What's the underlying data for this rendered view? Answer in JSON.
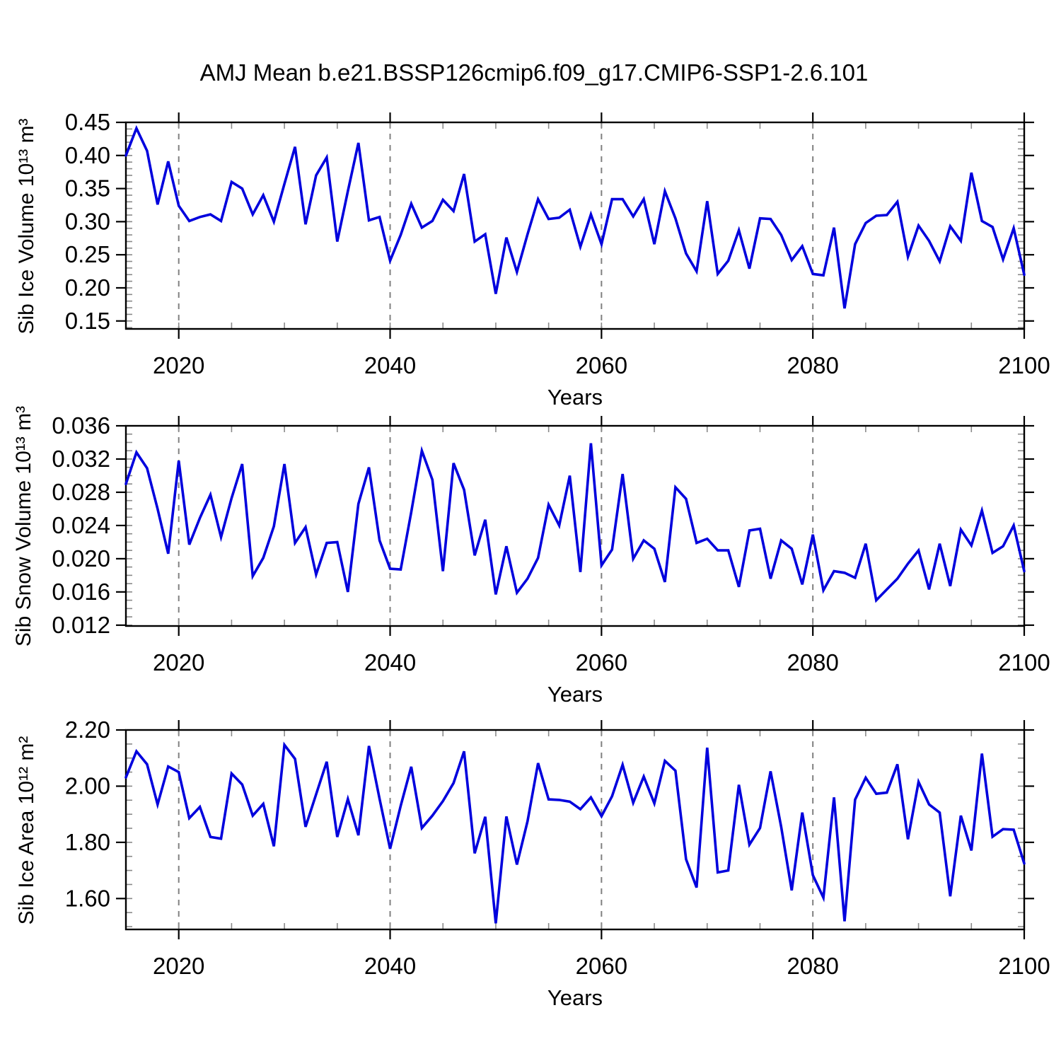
{
  "title": "AMJ Mean b.e21.BSSP126cmip6.f09_g17.CMIP6-SSP1-2.6.101",
  "years_label": "Years",
  "line_color": "#0000dd",
  "grid_color": "#808080",
  "axis_color": "#000000",
  "minor_tick_color": "#8a8a8a",
  "x_axis": {
    "min": 2015,
    "max": 2100,
    "major_ticks": [
      2020,
      2040,
      2060,
      2080,
      2100
    ],
    "major_tick_labels": [
      "2020",
      "2040",
      "2060",
      "2080",
      "2100"
    ],
    "minor_step": 5,
    "dashed_gridlines": [
      2020,
      2040,
      2060,
      2080
    ]
  },
  "chart_data": [
    {
      "type": "line",
      "name": "sib-ice-volume",
      "ylabel": "Sib Ice Volume 10¹³ m³",
      "xlabel": "Years",
      "ylim": [
        0.138,
        0.45
      ],
      "ytick_values": [
        0.15,
        0.2,
        0.25,
        0.3,
        0.35,
        0.4,
        0.45
      ],
      "ytick_labels": [
        "0.15",
        "0.20",
        "0.25",
        "0.30",
        "0.35",
        "0.40",
        "0.45"
      ],
      "yminor_step": 0.01,
      "x": [
        2015,
        2016,
        2017,
        2018,
        2019,
        2020,
        2021,
        2022,
        2023,
        2024,
        2025,
        2026,
        2027,
        2028,
        2029,
        2030,
        2031,
        2032,
        2033,
        2034,
        2035,
        2036,
        2037,
        2038,
        2039,
        2040,
        2041,
        2042,
        2043,
        2044,
        2045,
        2046,
        2047,
        2048,
        2049,
        2050,
        2051,
        2052,
        2053,
        2054,
        2055,
        2056,
        2057,
        2058,
        2059,
        2060,
        2061,
        2062,
        2063,
        2064,
        2065,
        2066,
        2067,
        2068,
        2069,
        2070,
        2071,
        2072,
        2073,
        2074,
        2075,
        2076,
        2077,
        2078,
        2079,
        2080,
        2081,
        2082,
        2083,
        2084,
        2085,
        2086,
        2087,
        2088,
        2089,
        2090,
        2091,
        2092,
        2093,
        2094,
        2095,
        2096,
        2097,
        2098,
        2099,
        2100
      ],
      "values": [
        0.4,
        0.441,
        0.407,
        0.326,
        0.391,
        0.324,
        0.301,
        0.307,
        0.311,
        0.301,
        0.36,
        0.35,
        0.311,
        0.34,
        0.3,
        0.357,
        0.413,
        0.296,
        0.37,
        0.397,
        0.27,
        0.346,
        0.419,
        0.302,
        0.307,
        0.241,
        0.28,
        0.327,
        0.291,
        0.301,
        0.333,
        0.316,
        0.372,
        0.27,
        0.281,
        0.191,
        0.276,
        0.224,
        0.281,
        0.334,
        0.304,
        0.306,
        0.318,
        0.262,
        0.311,
        0.266,
        0.334,
        0.334,
        0.308,
        0.334,
        0.266,
        0.346,
        0.305,
        0.252,
        0.225,
        0.331,
        0.221,
        0.241,
        0.287,
        0.229,
        0.305,
        0.304,
        0.28,
        0.242,
        0.263,
        0.221,
        0.219,
        0.291,
        0.169,
        0.266,
        0.298,
        0.309,
        0.31,
        0.33,
        0.247,
        0.294,
        0.271,
        0.24,
        0.293,
        0.271,
        0.374,
        0.301,
        0.292,
        0.243,
        0.29,
        0.22
      ]
    },
    {
      "type": "line",
      "name": "sib-snow-volume",
      "ylabel": "Sib Snow Volume 10¹³ m³",
      "xlabel": "Years",
      "ylim": [
        0.0119,
        0.036
      ],
      "ytick_values": [
        0.012,
        0.016,
        0.02,
        0.024,
        0.028,
        0.032,
        0.036
      ],
      "ytick_labels": [
        "0.012",
        "0.016",
        "0.020",
        "0.024",
        "0.028",
        "0.032",
        "0.036"
      ],
      "yminor_step": 0.001,
      "x": [
        2015,
        2016,
        2017,
        2018,
        2019,
        2020,
        2021,
        2022,
        2023,
        2024,
        2025,
        2026,
        2027,
        2028,
        2029,
        2030,
        2031,
        2032,
        2033,
        2034,
        2035,
        2036,
        2037,
        2038,
        2039,
        2040,
        2041,
        2042,
        2043,
        2044,
        2045,
        2046,
        2047,
        2048,
        2049,
        2050,
        2051,
        2052,
        2053,
        2054,
        2055,
        2056,
        2057,
        2058,
        2059,
        2060,
        2061,
        2062,
        2063,
        2064,
        2065,
        2066,
        2067,
        2068,
        2069,
        2070,
        2071,
        2072,
        2073,
        2074,
        2075,
        2076,
        2077,
        2078,
        2079,
        2080,
        2081,
        2082,
        2083,
        2084,
        2085,
        2086,
        2087,
        2088,
        2089,
        2090,
        2091,
        2092,
        2093,
        2094,
        2095,
        2096,
        2097,
        2098,
        2099,
        2100
      ],
      "values": [
        0.029,
        0.0328,
        0.0309,
        0.026,
        0.0206,
        0.0318,
        0.0217,
        0.0249,
        0.0277,
        0.0226,
        0.0273,
        0.0314,
        0.0179,
        0.0201,
        0.0239,
        0.0314,
        0.0219,
        0.0238,
        0.0181,
        0.0219,
        0.022,
        0.016,
        0.0266,
        0.031,
        0.0222,
        0.0188,
        0.0187,
        0.0256,
        0.033,
        0.0295,
        0.0185,
        0.0315,
        0.0283,
        0.0204,
        0.0247,
        0.0157,
        0.0215,
        0.0159,
        0.0176,
        0.0201,
        0.0265,
        0.024,
        0.03,
        0.0184,
        0.0339,
        0.0192,
        0.0211,
        0.0302,
        0.02,
        0.0222,
        0.0212,
        0.0172,
        0.0286,
        0.0272,
        0.0219,
        0.0224,
        0.021,
        0.021,
        0.0166,
        0.0234,
        0.0236,
        0.0176,
        0.0222,
        0.0212,
        0.0169,
        0.0229,
        0.0162,
        0.0185,
        0.0183,
        0.0177,
        0.0218,
        0.015,
        0.0163,
        0.0176,
        0.0194,
        0.021,
        0.0163,
        0.0218,
        0.0167,
        0.0235,
        0.0216,
        0.0258,
        0.0207,
        0.0215,
        0.024,
        0.0185
      ]
    },
    {
      "type": "line",
      "name": "sib-ice-area",
      "ylabel": "Sib Ice Area 10¹² m²",
      "xlabel": "Years",
      "ylim": [
        1.49,
        2.2
      ],
      "ytick_values": [
        1.6,
        1.8,
        2.0,
        2.2
      ],
      "ytick_labels": [
        "1.60",
        "1.80",
        "2.00",
        "2.20"
      ],
      "yminor_step": 0.05,
      "x": [
        2015,
        2016,
        2017,
        2018,
        2019,
        2020,
        2021,
        2022,
        2023,
        2024,
        2025,
        2026,
        2027,
        2028,
        2029,
        2030,
        2031,
        2032,
        2033,
        2034,
        2035,
        2036,
        2037,
        2038,
        2039,
        2040,
        2041,
        2042,
        2043,
        2044,
        2045,
        2046,
        2047,
        2048,
        2049,
        2050,
        2051,
        2052,
        2053,
        2054,
        2055,
        2056,
        2057,
        2058,
        2059,
        2060,
        2061,
        2062,
        2063,
        2064,
        2065,
        2066,
        2067,
        2068,
        2069,
        2070,
        2071,
        2072,
        2073,
        2074,
        2075,
        2076,
        2077,
        2078,
        2079,
        2080,
        2081,
        2082,
        2083,
        2084,
        2085,
        2086,
        2087,
        2088,
        2089,
        2090,
        2091,
        2092,
        2093,
        2094,
        2095,
        2096,
        2097,
        2098,
        2099,
        2100
      ],
      "values": [
        2.031,
        2.124,
        2.078,
        1.935,
        2.07,
        2.05,
        1.886,
        1.926,
        1.819,
        1.813,
        2.045,
        2.006,
        1.895,
        1.937,
        1.786,
        2.147,
        2.097,
        1.855,
        1.971,
        2.087,
        1.819,
        1.954,
        1.825,
        2.143,
        1.955,
        1.777,
        1.93,
        2.069,
        1.851,
        1.895,
        1.947,
        2.011,
        2.124,
        1.761,
        1.891,
        1.512,
        1.892,
        1.721,
        1.875,
        2.082,
        1.953,
        1.951,
        1.945,
        1.918,
        1.96,
        1.893,
        1.964,
        2.076,
        1.941,
        2.034,
        1.939,
        2.09,
        2.055,
        1.74,
        1.639,
        2.137,
        1.693,
        1.7,
        2.005,
        1.792,
        1.851,
        2.053,
        1.855,
        1.629,
        1.906,
        1.683,
        1.603,
        1.96,
        1.519,
        1.952,
        2.03,
        1.973,
        1.977,
        2.078,
        1.811,
        2.015,
        1.935,
        1.906,
        1.608,
        1.895,
        1.771,
        2.116,
        1.82,
        1.847,
        1.845,
        1.725
      ]
    }
  ]
}
